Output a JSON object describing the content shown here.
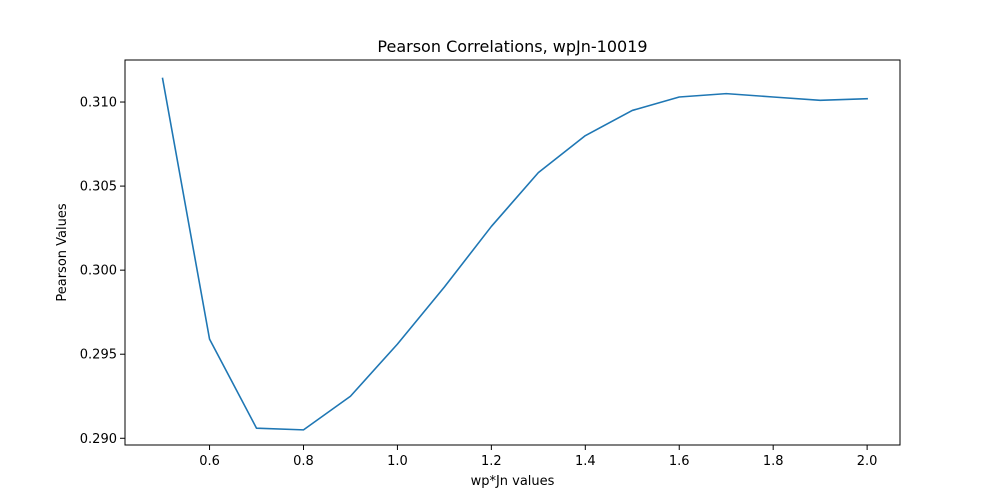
{
  "chart_data": {
    "type": "line",
    "title": "Pearson Correlations, wpJn-10019",
    "xlabel": "wp*Jn values",
    "ylabel": "Pearson Values",
    "xlim": [
      0.42,
      2.07
    ],
    "ylim": [
      0.2896,
      0.3125
    ],
    "x_ticks": [
      0.6,
      0.8,
      1.0,
      1.2,
      1.4,
      1.6,
      1.8,
      2.0
    ],
    "x_tick_labels": [
      "0.6",
      "0.8",
      "1.0",
      "1.2",
      "1.4",
      "1.6",
      "1.8",
      "2.0"
    ],
    "y_ticks": [
      0.29,
      0.295,
      0.3,
      0.305,
      0.31
    ],
    "y_tick_labels": [
      "0.290",
      "0.295",
      "0.300",
      "0.305",
      "0.310"
    ],
    "grid": false,
    "series": [
      {
        "color": "#1f77b4",
        "x": [
          0.5,
          0.6,
          0.7,
          0.8,
          0.9,
          1.0,
          1.1,
          1.2,
          1.3,
          1.4,
          1.5,
          1.6,
          1.7,
          1.8,
          1.9,
          2.0
        ],
        "y": [
          0.3114,
          0.2959,
          0.2906,
          0.2905,
          0.2925,
          0.2956,
          0.299,
          0.3026,
          0.3058,
          0.308,
          0.3095,
          0.3103,
          0.3105,
          0.3103,
          0.3101,
          0.3102
        ]
      }
    ]
  }
}
